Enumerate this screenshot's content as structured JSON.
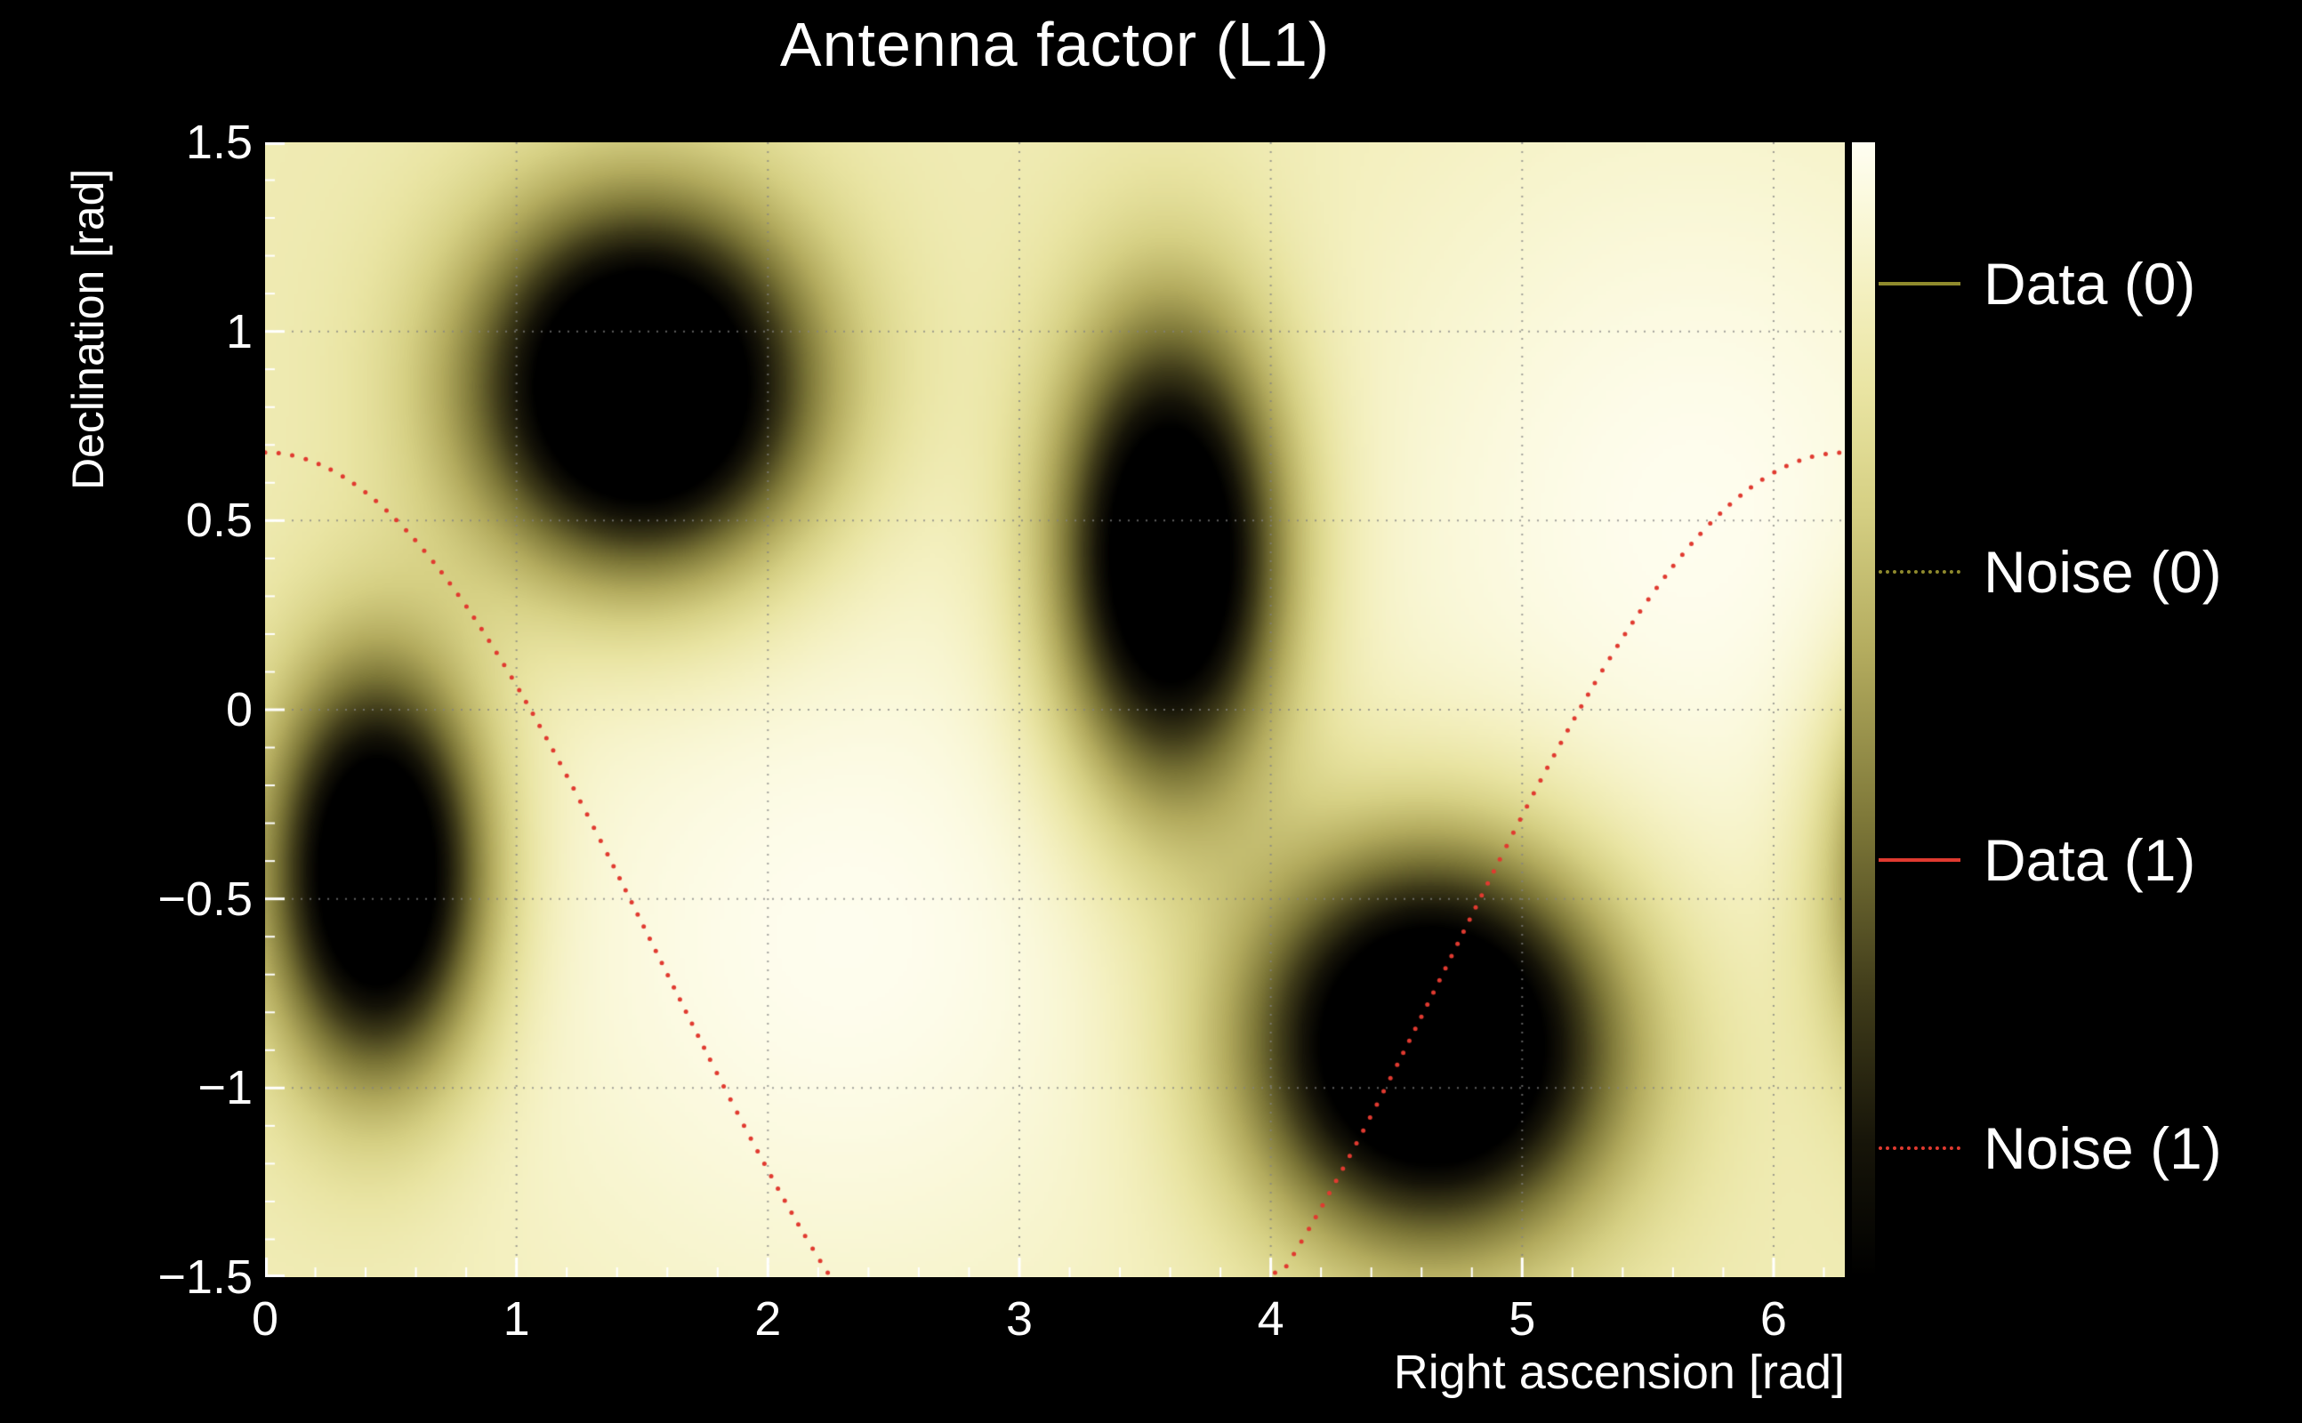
{
  "title": "Antenna factor (L1)",
  "colors": {
    "background": "#000000",
    "text": "#ffffff",
    "grid": "#8a8a8a"
  },
  "axes": {
    "x": {
      "label": "Right ascension [rad]",
      "min": 0,
      "max": 6.2832,
      "ticks": [
        0,
        1,
        2,
        3,
        4,
        5,
        6
      ],
      "tick_labels": [
        "0",
        "1",
        "2",
        "3",
        "4",
        "5",
        "6"
      ]
    },
    "y": {
      "label": "Declination [rad]",
      "min": -1.5,
      "max": 1.5,
      "ticks": [
        -1.5,
        -1,
        -0.5,
        0,
        0.5,
        1,
        1.5
      ],
      "tick_labels": [
        "−1.5",
        "−1",
        "−0.5",
        "0",
        "0.5",
        "1",
        "1.5"
      ]
    }
  },
  "legend": [
    {
      "label": "Data (0)",
      "color": "#8f8a2d",
      "style": "solid"
    },
    {
      "label": "Noise (0)",
      "color": "#8f8a2d",
      "style": "dotted"
    },
    {
      "label": "Data (1)",
      "color": "#e03a30",
      "style": "solid"
    },
    {
      "label": "Noise (1)",
      "color": "#e03a30",
      "style": "dotted"
    }
  ],
  "chart_data": {
    "type": "heatmap",
    "title": "Antenna factor (L1)",
    "xlabel": "Right ascension [rad]",
    "ylabel": "Declination [rad]",
    "xlim": [
      0,
      6.2832
    ],
    "ylim": [
      -1.5,
      1.5
    ],
    "x_ticks": [
      0,
      1,
      2,
      3,
      4,
      5,
      6
    ],
    "y_ticks": [
      -1.5,
      -1,
      -0.5,
      0,
      0.5,
      1,
      1.5
    ],
    "grid": true,
    "legend_position": "right",
    "colorbar": true,
    "field": {
      "description": "Antenna response over sky; base level with broad bright maxima and four deep dark minima (one wraps past RA=2pi).",
      "base": 0.83,
      "bright_spots": [
        {
          "ra": 2.3,
          "dec": -0.6,
          "amp": 0.16,
          "sigma_ra": 1.15,
          "sigma_dec": 0.8
        },
        {
          "ra": 5.7,
          "dec": 0.5,
          "amp": 0.16,
          "sigma_ra": 1.05,
          "sigma_dec": 0.85
        }
      ],
      "dark_spots": [
        {
          "ra": 1.5,
          "dec": 0.85,
          "amp": 1.3,
          "sigma_ra": 0.46,
          "sigma_dec": 0.33
        },
        {
          "ra": 3.6,
          "dec": 0.4,
          "amp": 1.2,
          "sigma_ra": 0.31,
          "sigma_dec": 0.43
        },
        {
          "ra": 0.45,
          "dec": -0.43,
          "amp": 1.2,
          "sigma_ra": 0.29,
          "sigma_dec": 0.37
        },
        {
          "ra": 4.64,
          "dec": -0.88,
          "amp": 1.3,
          "sigma_ra": 0.5,
          "sigma_dec": 0.35
        },
        {
          "ra": 6.73,
          "dec": -0.43,
          "amp": 1.2,
          "sigma_ra": 0.29,
          "sigma_dec": 0.37
        }
      ]
    },
    "palette": [
      [
        0.0,
        "#000000"
      ],
      [
        0.12,
        "#171509"
      ],
      [
        0.25,
        "#403c1a"
      ],
      [
        0.4,
        "#7d7738"
      ],
      [
        0.55,
        "#b3ab5e"
      ],
      [
        0.68,
        "#d6d084"
      ],
      [
        0.78,
        "#e9e4a2"
      ],
      [
        0.87,
        "#f4f0c0"
      ],
      [
        0.94,
        "#faf8da"
      ],
      [
        1.0,
        "#fffef2"
      ]
    ],
    "noise_track": {
      "name": "Noise (1) sky track",
      "model": "dec = offset + amplitude * cos(ra), clipped to ylim",
      "offset": -0.66,
      "amplitude": 1.34,
      "clip_min": -1.5,
      "color": "#e03a30",
      "style": "dotted"
    }
  }
}
